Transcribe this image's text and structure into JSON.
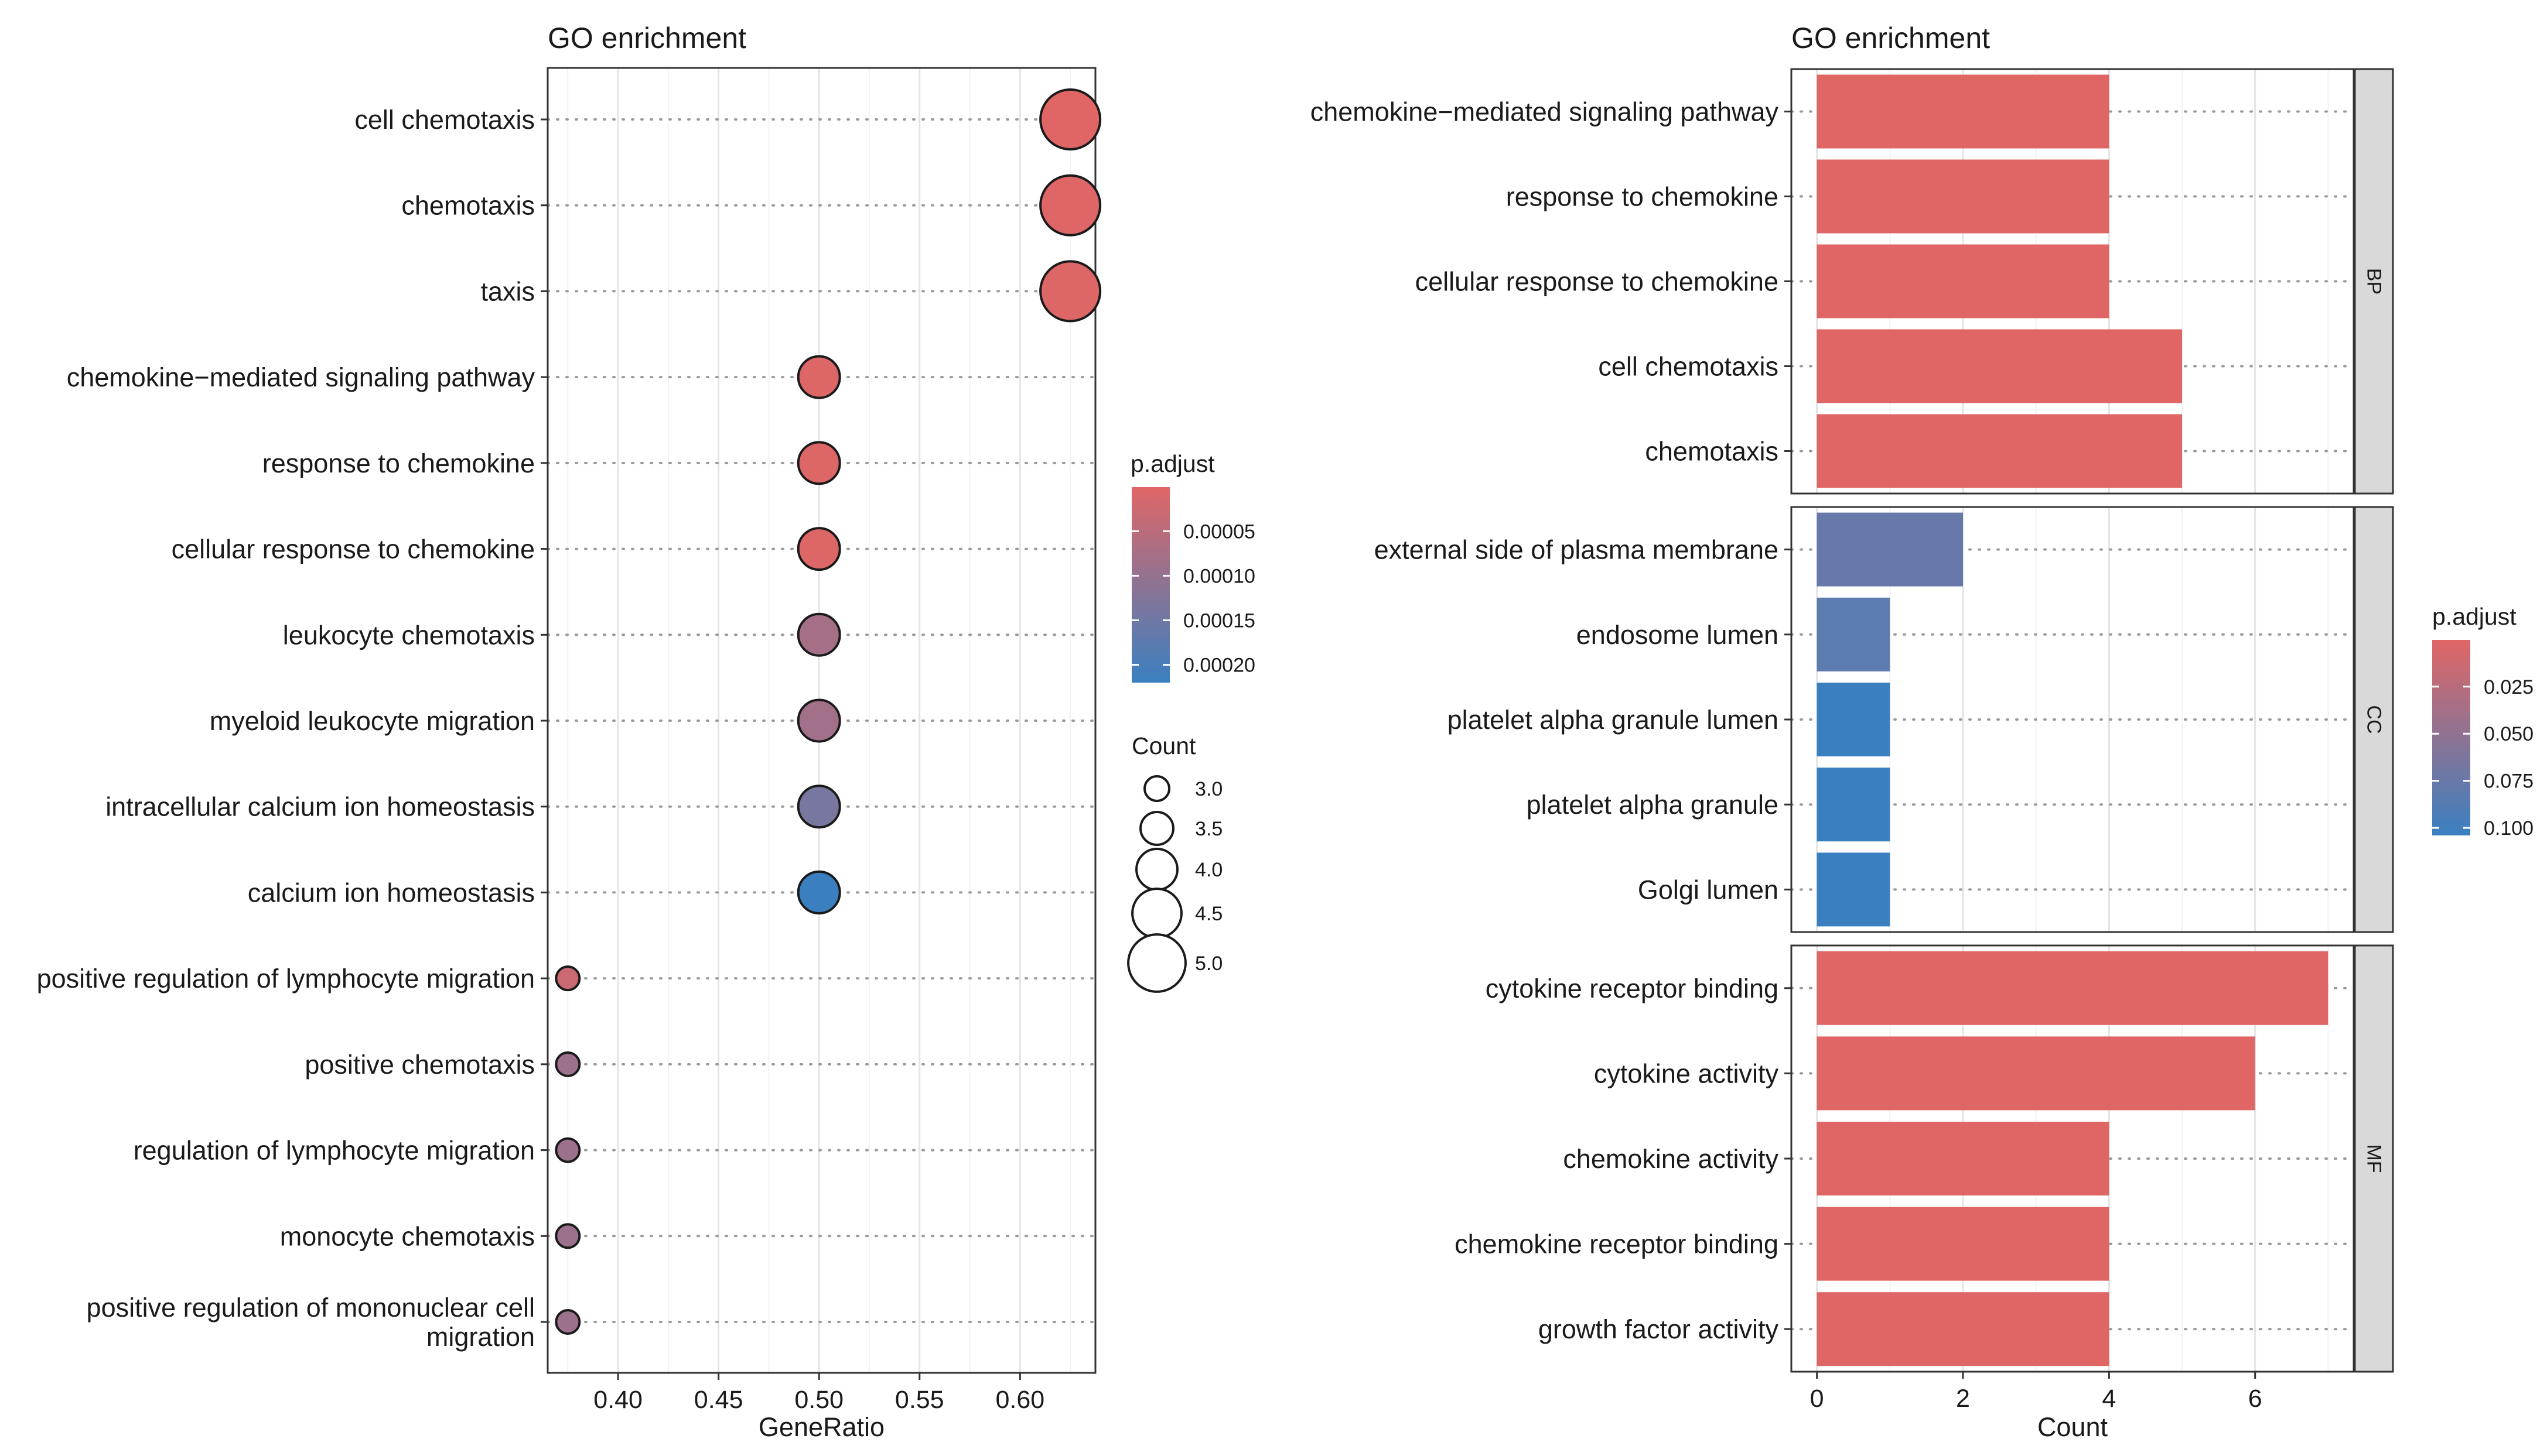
{
  "chart_data": [
    {
      "type": "scatter",
      "title": "GO enrichment",
      "xlabel": "GeneRatio",
      "ylabel": "",
      "xlim": [
        0.365,
        0.6375
      ],
      "xticks": [
        "0.40",
        "0.45",
        "0.50",
        "0.55",
        "0.60"
      ],
      "xtick_values": [
        0.4,
        0.45,
        0.5,
        0.55,
        0.6
      ],
      "grid": true,
      "legend": "right",
      "categories": [
        [
          "cell chemotaxis"
        ],
        [
          "chemotaxis"
        ],
        [
          "taxis"
        ],
        [
          "chemokine−mediated signaling pathway"
        ],
        [
          "response to chemokine"
        ],
        [
          "cellular response to chemokine"
        ],
        [
          "leukocyte chemotaxis"
        ],
        [
          "myeloid leukocyte migration"
        ],
        [
          "intracellular calcium ion homeostasis"
        ],
        [
          "calcium ion homeostasis"
        ],
        [
          "positive regulation of lymphocyte migration"
        ],
        [
          "positive chemotaxis"
        ],
        [
          "regulation of lymphocyte migration"
        ],
        [
          "monocyte chemotaxis"
        ],
        [
          "positive regulation of mononuclear cell",
          "migration"
        ]
      ],
      "gene_ratio": [
        0.625,
        0.625,
        0.625,
        0.5,
        0.5,
        0.5,
        0.5,
        0.5,
        0.5,
        0.5,
        0.375,
        0.375,
        0.375,
        0.375,
        0.375
      ],
      "count": [
        5,
        5,
        5,
        4,
        4,
        4,
        4,
        4,
        4,
        4,
        3,
        3,
        3,
        3,
        3
      ],
      "p_adjust": [
        5e-07,
        2e-06,
        4e-06,
        4e-06,
        4e-06,
        4e-06,
        8e-05,
        8.2e-05,
        0.00014,
        0.00022,
        3e-05,
        9e-05,
        9e-05,
        9e-05,
        9e-05
      ],
      "color_legend": {
        "title": "p.adjust",
        "range": [
          5e-07,
          0.00022
        ],
        "ticks": [
          "0.00005",
          "0.00010",
          "0.00015",
          "0.00020"
        ],
        "tick_values": [
          5e-05,
          0.0001,
          0.00015,
          0.0002
        ],
        "low_color": "#e06666",
        "high_color": "#3a80c1"
      },
      "size_legend": {
        "title": "Count",
        "labels": [
          "3.0",
          "3.5",
          "4.0",
          "4.5",
          "5.0"
        ],
        "values": [
          3.0,
          3.5,
          4.0,
          4.5,
          5.0
        ]
      }
    },
    {
      "type": "bar",
      "orientation": "horizontal",
      "title": "GO enrichment",
      "xlabel": "Count",
      "ylabel": "",
      "xlim": [
        -0.35,
        7.35
      ],
      "xticks": [
        "0",
        "2",
        "4",
        "6"
      ],
      "xtick_values": [
        0,
        2,
        4,
        6
      ],
      "grid": true,
      "legend": "right",
      "facets": [
        {
          "label": "BP",
          "categories": [
            "chemokine−mediated signaling pathway",
            "response to chemokine",
            "cellular response to chemokine",
            "cell chemotaxis",
            "chemotaxis"
          ],
          "values": [
            4,
            4,
            4,
            5,
            5
          ],
          "p_adjust": [
            0.0003,
            0.0003,
            0.0003,
            0.0002,
            0.0002
          ]
        },
        {
          "label": "CC",
          "categories": [
            "external side of plasma membrane",
            "endosome lumen",
            "platelet alpha granule lumen",
            "platelet alpha granule",
            "Golgi lumen"
          ],
          "values": [
            2,
            1,
            1,
            1,
            1
          ],
          "p_adjust": [
            0.076,
            0.083,
            0.104,
            0.104,
            0.104
          ]
        },
        {
          "label": "MF",
          "categories": [
            "cytokine receptor binding",
            "cytokine activity",
            "chemokine activity",
            "chemokine receptor binding",
            "growth factor activity"
          ],
          "values": [
            7,
            6,
            4,
            4,
            4
          ],
          "p_adjust": [
            0.0003,
            0.0003,
            0.0003,
            0.0003,
            0.0003
          ]
        }
      ],
      "color_legend": {
        "title": "p.adjust",
        "range": [
          0.0002,
          0.104
        ],
        "ticks": [
          "0.025",
          "0.050",
          "0.075",
          "0.100"
        ],
        "tick_values": [
          0.025,
          0.05,
          0.075,
          0.1
        ],
        "low_color": "#e06666",
        "high_color": "#3a80c1"
      }
    }
  ]
}
